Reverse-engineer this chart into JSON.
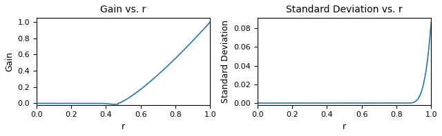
{
  "left_title": "Gain vs. r",
  "right_title": "Standard Deviation vs. r",
  "xlabel": "r",
  "left_ylabel": "Gain",
  "right_ylabel": "Standard Deviation",
  "line_color": "#1f77b4",
  "line_width": 1.2,
  "left_ylim": [
    -0.02,
    1.05
  ],
  "right_ylim": [
    -0.002,
    0.091
  ],
  "left_xlim": [
    0.0,
    1.0
  ],
  "right_xlim": [
    0.0,
    1.0
  ],
  "left_yticks": [
    0.0,
    0.2,
    0.4,
    0.6,
    0.8,
    1.0
  ],
  "right_yticks": [
    0.0,
    0.02,
    0.04,
    0.06,
    0.08
  ],
  "xticks": [
    0.0,
    0.2,
    0.4,
    0.6,
    0.8,
    1.0
  ],
  "n_points": 2000,
  "gain_knee": 0.47,
  "gain_scale": 0.06,
  "std_knee": 0.855,
  "std_exp": 4.0,
  "std_max": 0.086
}
